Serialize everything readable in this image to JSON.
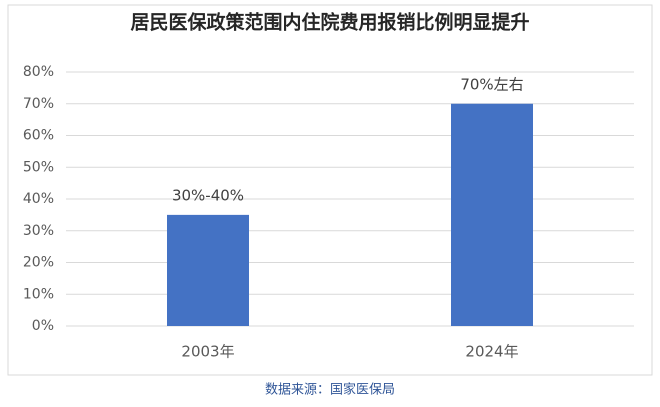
{
  "chart_data": {
    "type": "bar",
    "title": "居民医保政策范围内住院费用报销比例明显提升",
    "categories": [
      "2003年",
      "2024年"
    ],
    "values": [
      35,
      70
    ],
    "value_labels": [
      "30%-40%",
      "70%左右"
    ],
    "color": "#4472c4",
    "ylim": [
      0,
      80
    ],
    "yticks": [
      {
        "value": 0,
        "label": "0%"
      },
      {
        "value": 10,
        "label": "10%"
      },
      {
        "value": 20,
        "label": "20%"
      },
      {
        "value": 30,
        "label": "30%"
      },
      {
        "value": 40,
        "label": "40%"
      },
      {
        "value": 50,
        "label": "50%"
      },
      {
        "value": 60,
        "label": "60%"
      },
      {
        "value": 70,
        "label": "70%"
      },
      {
        "value": 80,
        "label": "80%"
      }
    ],
    "grid": true,
    "source": "数据来源：国家医保局"
  }
}
